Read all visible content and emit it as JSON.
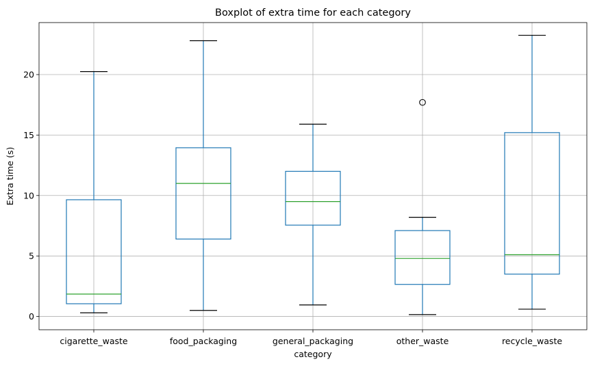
{
  "chart_data": {
    "type": "boxplot",
    "title": "Boxplot of extra time for each category",
    "xlabel": "category",
    "ylabel": "Extra time (s)",
    "categories": [
      "cigarette_waste",
      "food_packaging",
      "general_packaging",
      "other_waste",
      "recycle_waste"
    ],
    "boxes": [
      {
        "category": "cigarette_waste",
        "whisker_low": 0.3,
        "q1": 1.05,
        "median": 1.85,
        "q3": 9.65,
        "whisker_high": 20.25,
        "outliers": []
      },
      {
        "category": "food_packaging",
        "whisker_low": 0.5,
        "q1": 6.4,
        "median": 11.0,
        "q3": 13.95,
        "whisker_high": 22.8,
        "outliers": []
      },
      {
        "category": "general_packaging",
        "whisker_low": 0.95,
        "q1": 7.55,
        "median": 9.5,
        "q3": 12.0,
        "whisker_high": 15.9,
        "outliers": []
      },
      {
        "category": "other_waste",
        "whisker_low": 0.15,
        "q1": 2.65,
        "median": 4.8,
        "q3": 7.1,
        "whisker_high": 8.2,
        "outliers": [
          17.7
        ]
      },
      {
        "category": "recycle_waste",
        "whisker_low": 0.6,
        "q1": 3.5,
        "median": 5.1,
        "q3": 15.2,
        "whisker_high": 23.25,
        "outliers": []
      }
    ],
    "yticks": [
      0,
      5,
      10,
      15,
      20
    ],
    "ylim": [
      -1.1,
      24.3
    ],
    "grid": true,
    "colors": {
      "box": "#1f77b4",
      "median": "#2ca02c",
      "whisker_cap": "#000000",
      "grid": "#b0b0b0",
      "outlier": "#000000"
    }
  }
}
